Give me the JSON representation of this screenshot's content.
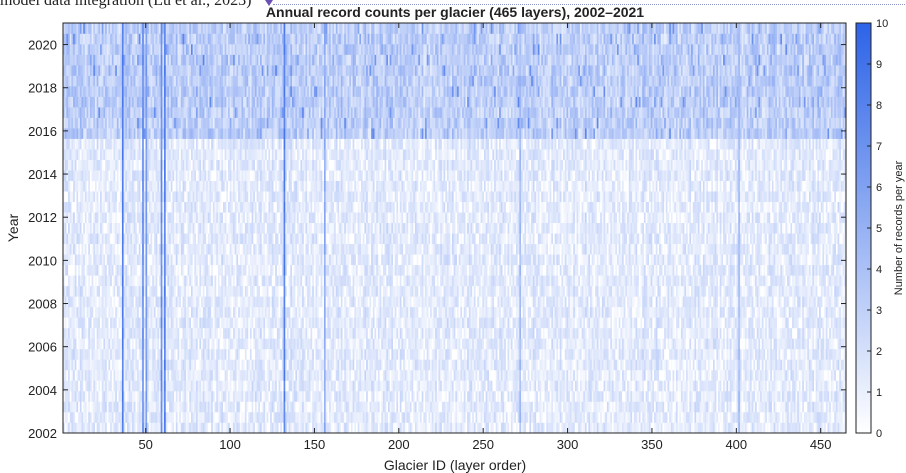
{
  "page": {
    "overflow_caption": "model data integration (Lu et al., 2023)"
  },
  "colors": {
    "low": "#ffffff",
    "high": "#2d63e8",
    "marker": "#6a4fb5",
    "dotline": "#8d95c9",
    "frame": "#222222",
    "text": "#222222"
  },
  "chart_data": {
    "type": "heatmap",
    "title": "Annual record counts per glacier (465 layers), 2002–2021",
    "xlabel": "Glacier ID (layer order)",
    "ylabel": "Year",
    "xlim": [
      1,
      465
    ],
    "ylim": [
      2002,
      2021
    ],
    "x_ticks": [
      50,
      100,
      150,
      200,
      250,
      300,
      350,
      400,
      450
    ],
    "y_ticks": [
      2002,
      2004,
      2006,
      2008,
      2010,
      2012,
      2014,
      2016,
      2018,
      2020
    ],
    "colorbar": {
      "label": "Number of records per year",
      "min": 0,
      "max": 10,
      "ticks": [
        0,
        1,
        2,
        3,
        4,
        5,
        6,
        7,
        8,
        9,
        10
      ]
    },
    "grid": false,
    "year_bands": [
      {
        "from": 2002,
        "to": 2015,
        "typical_range": [
          0,
          3
        ]
      },
      {
        "from": 2015.5,
        "to": 2021,
        "typical_range": [
          1,
          4
        ]
      }
    ],
    "strong_columns": [
      {
        "glacier": 36,
        "value": 9
      },
      {
        "glacier": 48,
        "value": 8
      },
      {
        "glacier": 50,
        "value": 7
      },
      {
        "glacier": 59,
        "value": 8
      },
      {
        "glacier": 61,
        "value": 9
      },
      {
        "glacier": 132,
        "value": 9
      },
      {
        "glacier": 156,
        "value": 6
      },
      {
        "glacier": 272,
        "value": 5
      },
      {
        "glacier": 402,
        "value": 5
      }
    ]
  }
}
